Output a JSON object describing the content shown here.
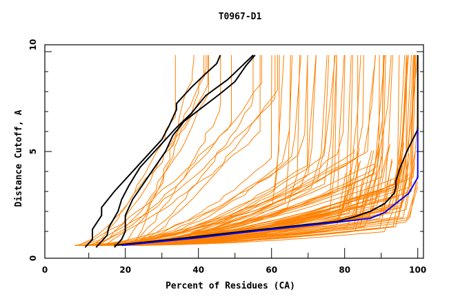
{
  "chart_data": {
    "type": "line",
    "title": "T0967-D1",
    "xlabel": "Percent of Residues (CA)",
    "ylabel": "Distance Cutoff, A",
    "xlim": [
      0,
      100
    ],
    "ylim": [
      0,
      10
    ],
    "x_ticks": [
      "0",
      "20",
      "40",
      "60",
      "80",
      "100"
    ],
    "x_tick_values": [
      0,
      20,
      40,
      60,
      80,
      100
    ],
    "y_ticks": [
      "0",
      "5",
      "10"
    ],
    "y_tick_values": [
      0,
      5,
      10
    ],
    "grid": false,
    "legend": "none",
    "colors": {
      "models": "#ff8000",
      "highlight": "#000000",
      "best": "#0000ff"
    },
    "highlight_series": [
      {
        "name": "black-curve-1",
        "color": "#000000",
        "points": [
          [
            9,
            0.2
          ],
          [
            11,
            0.6
          ],
          [
            11,
            1.1
          ],
          [
            13.5,
            1.8
          ],
          [
            13.5,
            2.2
          ],
          [
            17,
            3.0
          ],
          [
            20,
            3.6
          ],
          [
            25,
            4.6
          ],
          [
            30,
            5.6
          ],
          [
            32,
            6.3
          ],
          [
            34,
            7.1
          ],
          [
            34,
            7.4
          ],
          [
            38,
            8.2
          ],
          [
            42,
            8.9
          ],
          [
            45,
            9.4
          ],
          [
            46,
            10
          ]
        ]
      },
      {
        "name": "black-curve-2",
        "color": "#000000",
        "points": [
          [
            12,
            0.2
          ],
          [
            15,
            0.8
          ],
          [
            15.5,
            1.2
          ],
          [
            18,
            2.0
          ],
          [
            19,
            2.6
          ],
          [
            21,
            3.3
          ],
          [
            24,
            4.2
          ],
          [
            28,
            5.0
          ],
          [
            31,
            5.6
          ],
          [
            34,
            6.2
          ],
          [
            38,
            6.9
          ],
          [
            42,
            7.8
          ],
          [
            48,
            8.6
          ],
          [
            52,
            9.3
          ],
          [
            55,
            10
          ]
        ]
      },
      {
        "name": "black-curve-3",
        "color": "#000000",
        "points": [
          [
            17,
            0.2
          ],
          [
            19,
            0.6
          ],
          [
            20,
            1.0
          ],
          [
            20,
            1.8
          ],
          [
            22,
            2.6
          ],
          [
            25,
            3.4
          ],
          [
            28,
            4.2
          ],
          [
            31,
            5.0
          ],
          [
            33,
            5.8
          ],
          [
            36,
            6.5
          ],
          [
            41,
            7.2
          ],
          [
            46,
            7.9
          ],
          [
            50,
            8.5
          ],
          [
            53,
            9.3
          ],
          [
            55.5,
            10
          ]
        ]
      },
      {
        "name": "black-curve-main",
        "color": "#000000",
        "points": [
          [
            17,
            0.3
          ],
          [
            30,
            0.55
          ],
          [
            40,
            0.75
          ],
          [
            50,
            0.95
          ],
          [
            60,
            1.15
          ],
          [
            70,
            1.35
          ],
          [
            78,
            1.5
          ],
          [
            83,
            1.75
          ],
          [
            87,
            2.0
          ],
          [
            91,
            2.4
          ],
          [
            93.5,
            2.9
          ],
          [
            94,
            3.2
          ],
          [
            94,
            3.5
          ],
          [
            95,
            4.1
          ],
          [
            97,
            5.0
          ],
          [
            100,
            6.1
          ],
          [
            100,
            10
          ]
        ]
      },
      {
        "name": "blue-curve-best",
        "color": "#0000ff",
        "points": [
          [
            19,
            0.3
          ],
          [
            30,
            0.5
          ],
          [
            40,
            0.68
          ],
          [
            50,
            0.9
          ],
          [
            60,
            1.1
          ],
          [
            70,
            1.3
          ],
          [
            80,
            1.5
          ],
          [
            87,
            1.65
          ],
          [
            91,
            1.95
          ],
          [
            94,
            2.4
          ],
          [
            97.5,
            2.9
          ],
          [
            100,
            3.7
          ],
          [
            100,
            6.1
          ]
        ]
      }
    ],
    "model_series_count": 100,
    "model_series_description": "Orange GDT curves of predicted models: percent of residues (x) within distance cutoff (y)"
  }
}
